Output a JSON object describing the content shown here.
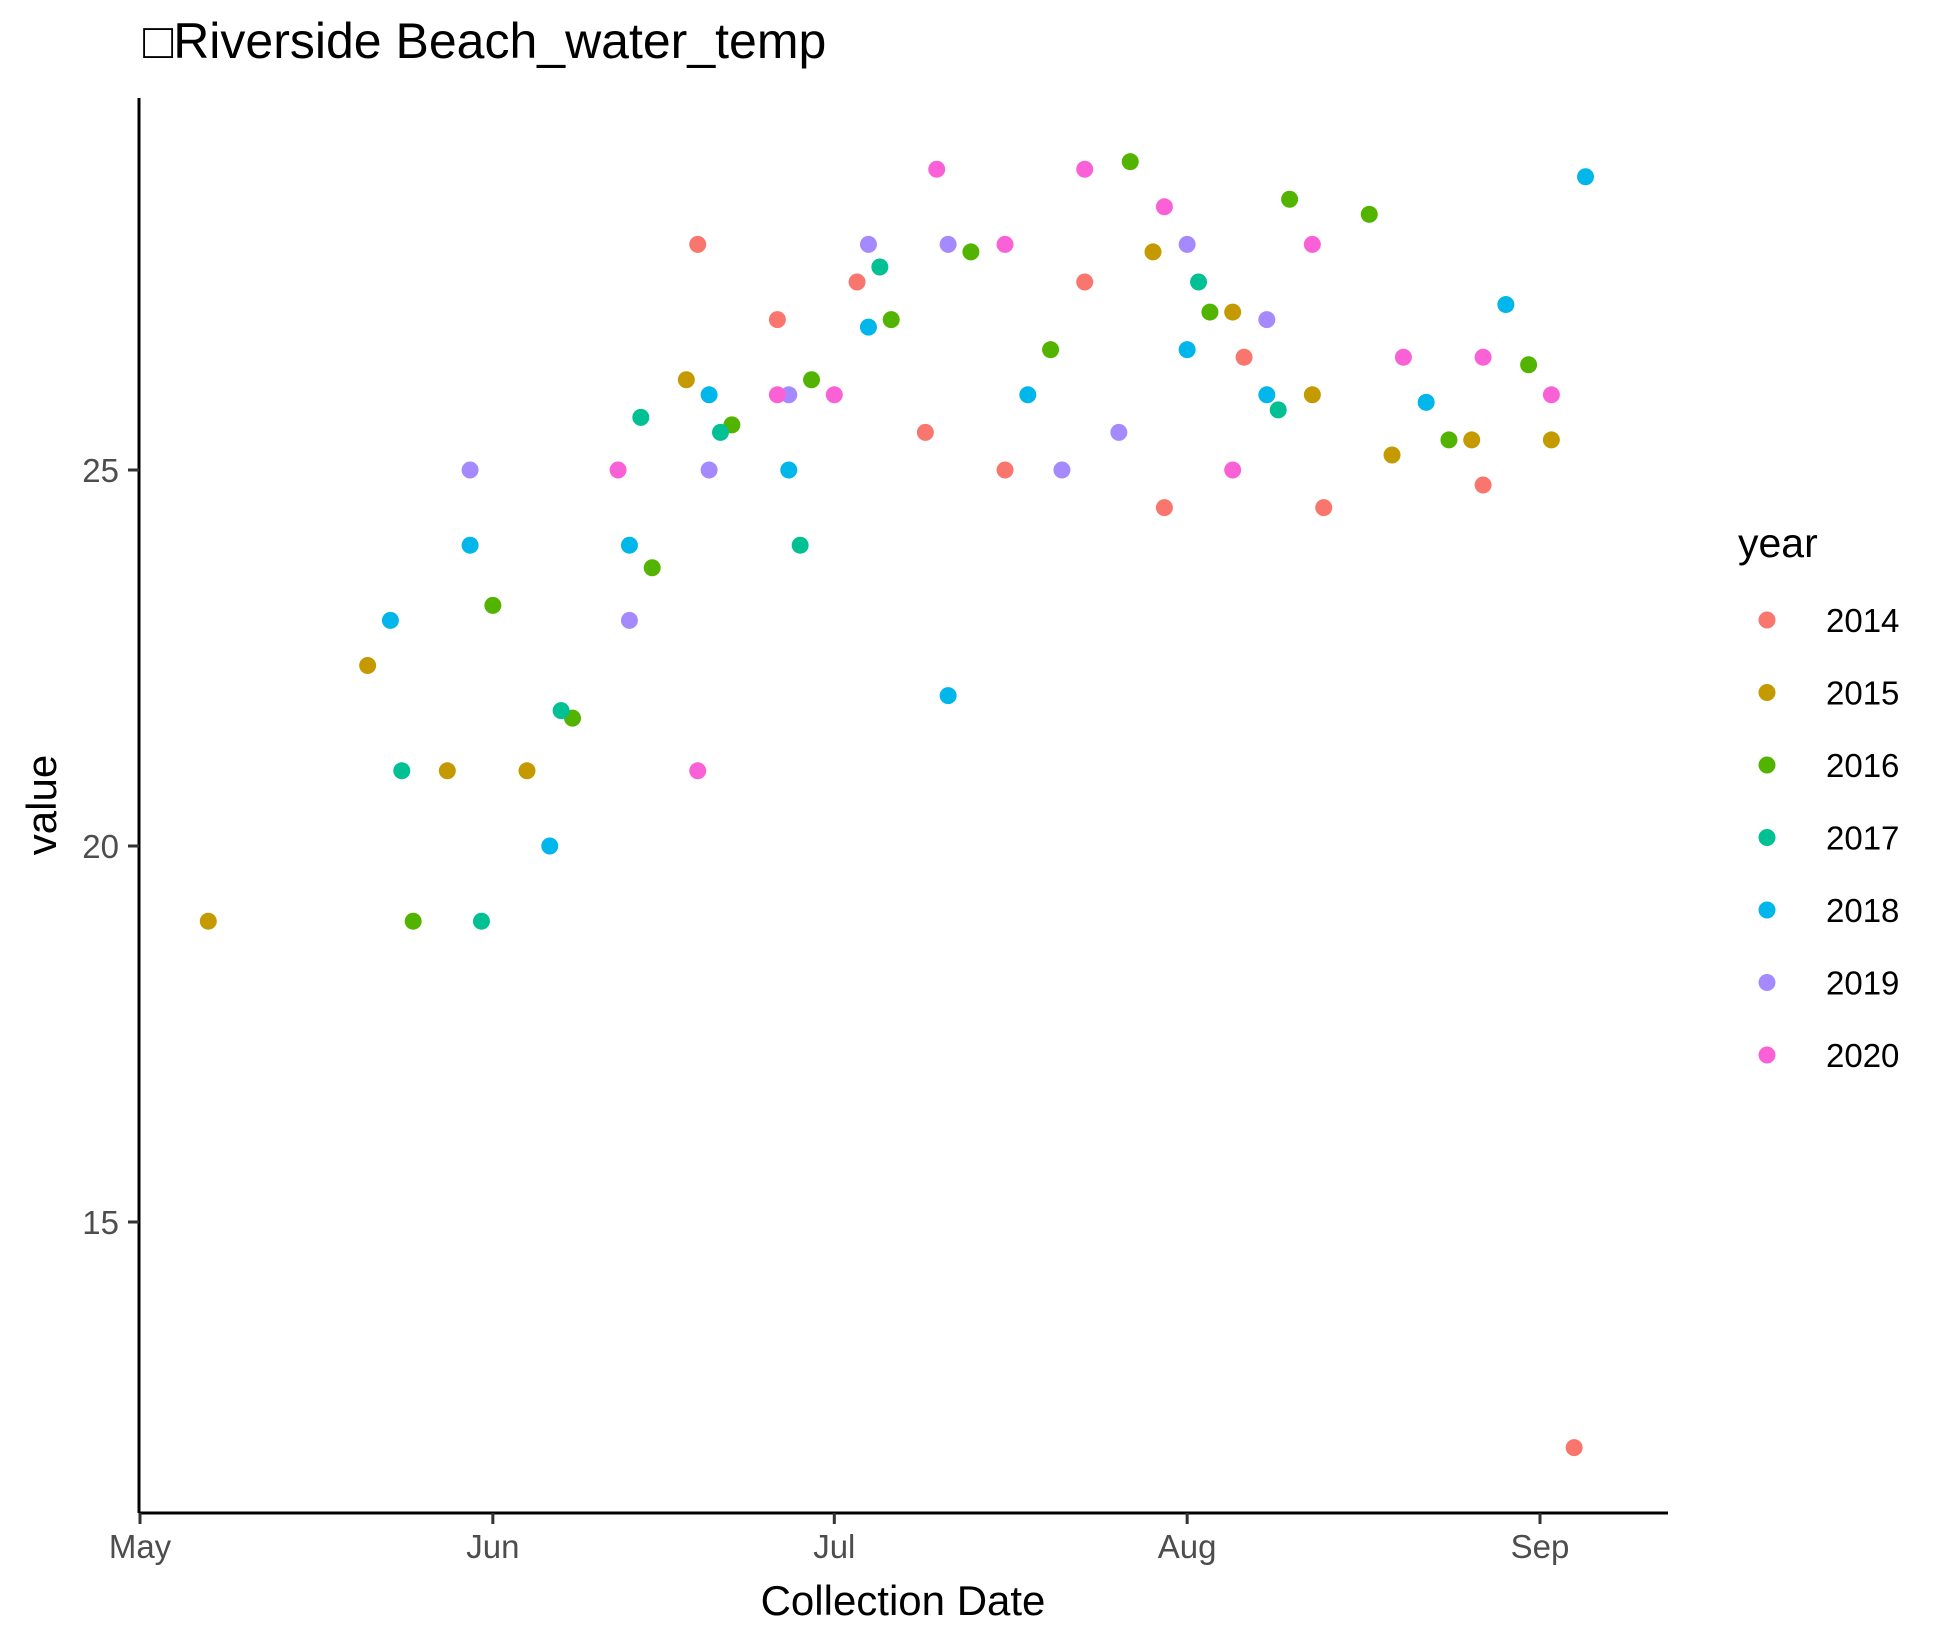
{
  "chart_data": {
    "type": "scatter",
    "title": "□Riverside Beach_water_temp",
    "xlabel": "Collection Date",
    "ylabel": "value",
    "x_unit": "date",
    "x_ticks": [
      {
        "label": "May",
        "date": "05-01"
      },
      {
        "label": "Jun",
        "date": "06-01"
      },
      {
        "label": "Jul",
        "date": "07-01"
      },
      {
        "label": "Aug",
        "date": "08-01"
      },
      {
        "label": "Sep",
        "date": "09-01"
      }
    ],
    "y_ticks": [
      15,
      20,
      25
    ],
    "ylim": [
      11.5,
      29.8
    ],
    "xlim": [
      "05-01",
      "09-10"
    ],
    "grid": false,
    "legend": {
      "title": "year",
      "position": "right"
    },
    "series": [
      {
        "name": "2014",
        "color": "#F8766D",
        "points": [
          {
            "x": "06-19",
            "y": 28.0
          },
          {
            "x": "06-26",
            "y": 27.0
          },
          {
            "x": "07-03",
            "y": 27.5
          },
          {
            "x": "07-09",
            "y": 25.5
          },
          {
            "x": "07-16",
            "y": 25.0
          },
          {
            "x": "07-23",
            "y": 27.5
          },
          {
            "x": "07-30",
            "y": 24.5
          },
          {
            "x": "08-06",
            "y": 26.5
          },
          {
            "x": "08-13",
            "y": 24.5
          },
          {
            "x": "08-27",
            "y": 24.8
          },
          {
            "x": "09-04",
            "y": 12.0
          }
        ]
      },
      {
        "name": "2015",
        "color": "#C49A00",
        "points": [
          {
            "x": "05-07",
            "y": 19.0
          },
          {
            "x": "05-21",
            "y": 22.4
          },
          {
            "x": "05-28",
            "y": 21.0
          },
          {
            "x": "06-04",
            "y": 21.0
          },
          {
            "x": "06-18",
            "y": 26.2
          },
          {
            "x": "07-29",
            "y": 27.9
          },
          {
            "x": "08-05",
            "y": 27.1
          },
          {
            "x": "08-12",
            "y": 26.0
          },
          {
            "x": "08-19",
            "y": 25.2
          },
          {
            "x": "08-26",
            "y": 25.4
          },
          {
            "x": "09-02",
            "y": 25.4
          }
        ]
      },
      {
        "name": "2016",
        "color": "#53B400",
        "points": [
          {
            "x": "05-25",
            "y": 19.0
          },
          {
            "x": "06-01",
            "y": 23.2
          },
          {
            "x": "06-08",
            "y": 21.7
          },
          {
            "x": "06-15",
            "y": 23.7
          },
          {
            "x": "06-22",
            "y": 25.6
          },
          {
            "x": "06-29",
            "y": 26.2
          },
          {
            "x": "07-06",
            "y": 27.0
          },
          {
            "x": "07-13",
            "y": 27.9
          },
          {
            "x": "07-20",
            "y": 26.6
          },
          {
            "x": "07-27",
            "y": 29.1
          },
          {
            "x": "08-03",
            "y": 27.1
          },
          {
            "x": "08-10",
            "y": 28.6
          },
          {
            "x": "08-17",
            "y": 28.4
          },
          {
            "x": "08-24",
            "y": 25.4
          },
          {
            "x": "08-31",
            "y": 26.4
          }
        ]
      },
      {
        "name": "2017",
        "color": "#00C094",
        "points": [
          {
            "x": "05-24",
            "y": 21.0
          },
          {
            "x": "05-31",
            "y": 19.0
          },
          {
            "x": "06-07",
            "y": 21.8
          },
          {
            "x": "06-14",
            "y": 25.7
          },
          {
            "x": "06-21",
            "y": 25.5
          },
          {
            "x": "06-28",
            "y": 24.0
          },
          {
            "x": "07-05",
            "y": 27.7
          },
          {
            "x": "08-02",
            "y": 27.5
          },
          {
            "x": "08-09",
            "y": 25.8
          }
        ]
      },
      {
        "name": "2018",
        "color": "#00B6EB",
        "points": [
          {
            "x": "05-23",
            "y": 23.0
          },
          {
            "x": "05-30",
            "y": 24.0
          },
          {
            "x": "06-06",
            "y": 20.0
          },
          {
            "x": "06-13",
            "y": 24.0
          },
          {
            "x": "06-20",
            "y": 26.0
          },
          {
            "x": "06-27",
            "y": 25.0
          },
          {
            "x": "07-04",
            "y": 26.9
          },
          {
            "x": "07-11",
            "y": 22.0
          },
          {
            "x": "07-18",
            "y": 26.0
          },
          {
            "x": "08-01",
            "y": 26.6
          },
          {
            "x": "08-08",
            "y": 26.0
          },
          {
            "x": "08-22",
            "y": 25.9
          },
          {
            "x": "08-29",
            "y": 27.2
          },
          {
            "x": "09-05",
            "y": 28.9
          }
        ]
      },
      {
        "name": "2019",
        "color": "#A58AFF",
        "points": [
          {
            "x": "05-30",
            "y": 25.0
          },
          {
            "x": "06-13",
            "y": 23.0
          },
          {
            "x": "06-20",
            "y": 25.0
          },
          {
            "x": "06-27",
            "y": 26.0
          },
          {
            "x": "07-04",
            "y": 28.0
          },
          {
            "x": "07-11",
            "y": 28.0
          },
          {
            "x": "07-21",
            "y": 25.0
          },
          {
            "x": "07-26",
            "y": 25.5
          },
          {
            "x": "08-01",
            "y": 28.0
          },
          {
            "x": "08-08",
            "y": 27.0
          }
        ]
      },
      {
        "name": "2020",
        "color": "#FB61D7",
        "points": [
          {
            "x": "06-12",
            "y": 25.0
          },
          {
            "x": "06-19",
            "y": 21.0
          },
          {
            "x": "06-26",
            "y": 26.0
          },
          {
            "x": "07-01",
            "y": 26.0
          },
          {
            "x": "07-10",
            "y": 29.0
          },
          {
            "x": "07-16",
            "y": 28.0
          },
          {
            "x": "07-23",
            "y": 29.0
          },
          {
            "x": "07-30",
            "y": 28.5
          },
          {
            "x": "08-05",
            "y": 25.0
          },
          {
            "x": "08-12",
            "y": 28.0
          },
          {
            "x": "08-20",
            "y": 26.5
          },
          {
            "x": "08-27",
            "y": 26.5
          },
          {
            "x": "09-02",
            "y": 26.0
          }
        ]
      }
    ]
  }
}
